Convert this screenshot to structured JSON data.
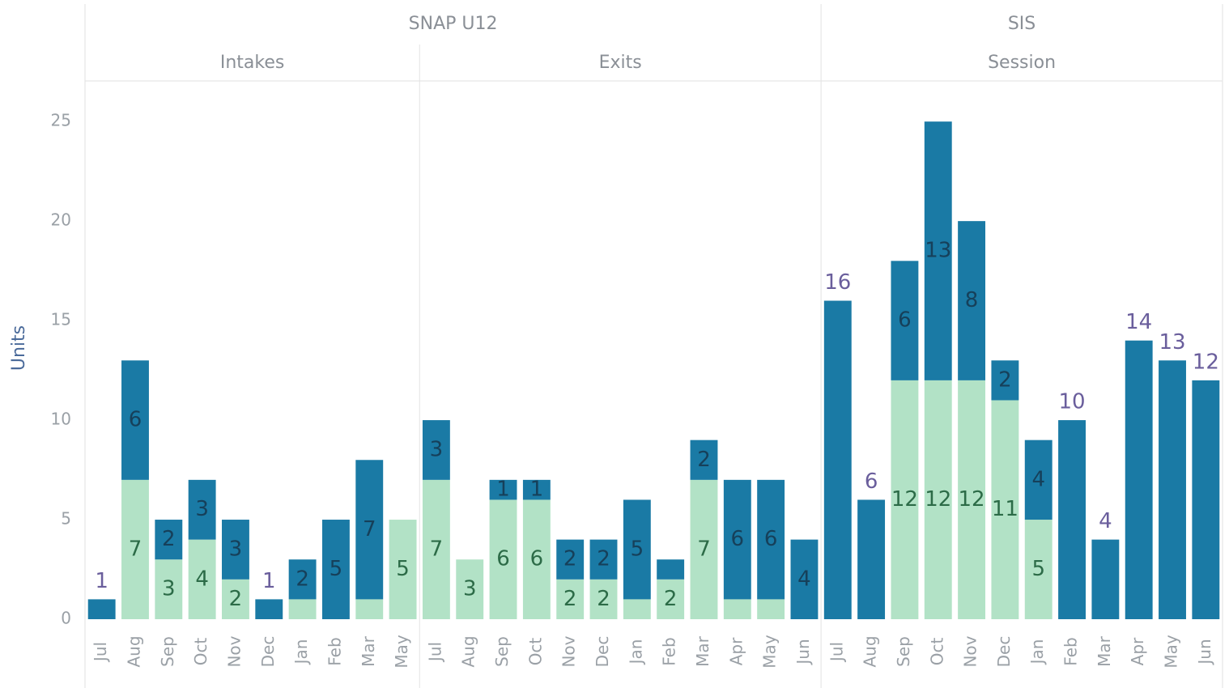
{
  "chart_data": {
    "type": "bar",
    "stacked": true,
    "y_label": "Units",
    "ylim": [
      0,
      27
    ],
    "yticks": [
      0,
      5,
      10,
      15,
      20,
      25
    ],
    "groups": [
      {
        "title": "SNAP U12",
        "panels": [
          {
            "title": "Intakes",
            "categories": [
              "Jul",
              "Aug",
              "Sep",
              "Oct",
              "Nov",
              "Dec",
              "Jan",
              "Feb",
              "Mar",
              "May"
            ],
            "series": [
              {
                "color": "#b2e2c6",
                "values": [
                  null,
                  7,
                  3,
                  4,
                  2,
                  null,
                  1,
                  null,
                  1,
                  5
                ],
                "value_labels": [
                  null,
                  "7",
                  "3",
                  "4",
                  "2",
                  null,
                  null,
                  null,
                  null,
                  "5"
                ]
              },
              {
                "color": "#1a7aa5",
                "values": [
                  1,
                  6,
                  2,
                  3,
                  3,
                  1,
                  2,
                  5,
                  7,
                  null
                ],
                "value_labels": [
                  "1",
                  "6",
                  "2",
                  "3",
                  "3",
                  "1",
                  "2",
                  "5",
                  "7",
                  null
                ]
              }
            ]
          },
          {
            "title": "Exits",
            "categories": [
              "Jul",
              "Aug",
              "Sep",
              "Oct",
              "Nov",
              "Dec",
              "Jan",
              "Feb",
              "Mar",
              "Apr",
              "May",
              "Jun"
            ],
            "series": [
              {
                "color": "#b2e2c6",
                "values": [
                  7,
                  3,
                  6,
                  6,
                  2,
                  2,
                  1,
                  2,
                  7,
                  1,
                  1,
                  null
                ],
                "value_labels": [
                  "7",
                  "3",
                  "6",
                  "6",
                  "2",
                  "2",
                  null,
                  "2",
                  "7",
                  null,
                  null,
                  null
                ]
              },
              {
                "color": "#1a7aa5",
                "values": [
                  3,
                  null,
                  1,
                  1,
                  2,
                  2,
                  5,
                  1,
                  2,
                  6,
                  6,
                  4
                ],
                "value_labels": [
                  "3",
                  null,
                  "1",
                  "1",
                  "2",
                  "2",
                  "5",
                  null,
                  "2",
                  "6",
                  "6",
                  "4"
                ]
              }
            ]
          }
        ]
      },
      {
        "title": "SIS",
        "panels": [
          {
            "title": "Session",
            "categories": [
              "Jul",
              "Aug",
              "Sep",
              "Oct",
              "Nov",
              "Dec",
              "Jan",
              "Feb",
              "Mar",
              "Apr",
              "May",
              "Jun"
            ],
            "series": [
              {
                "color": "#b2e2c6",
                "values": [
                  null,
                  null,
                  12,
                  12,
                  12,
                  11,
                  5,
                  null,
                  null,
                  null,
                  null,
                  null
                ],
                "value_labels": [
                  null,
                  null,
                  "12",
                  "12",
                  "12",
                  "11",
                  "5",
                  null,
                  null,
                  null,
                  null,
                  null
                ]
              },
              {
                "color": "#1a7aa5",
                "values": [
                  16,
                  6,
                  6,
                  13,
                  8,
                  2,
                  4,
                  10,
                  4,
                  14,
                  13,
                  12
                ],
                "value_labels": [
                  "16",
                  "6",
                  "6",
                  "13",
                  "8",
                  "2",
                  "4",
                  "10",
                  "4",
                  "14",
                  "13",
                  "12"
                ]
              }
            ]
          }
        ]
      }
    ]
  }
}
